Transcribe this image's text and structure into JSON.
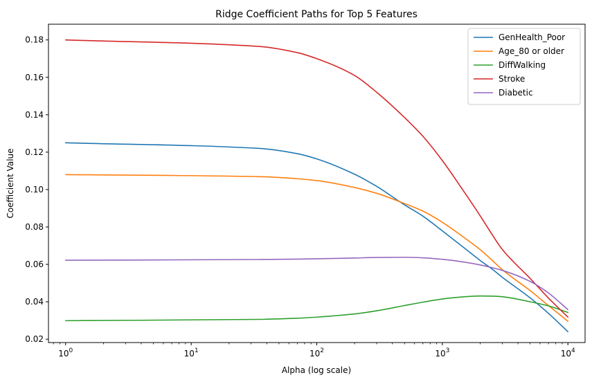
{
  "chart_data": {
    "type": "line",
    "title": "Ridge Coefficient Paths for Top 5 Features",
    "xlabel": "Alpha (log scale)",
    "ylabel": "Coefficient Value",
    "xscale": "log",
    "xlim": [
      0.73,
      13700
    ],
    "ylim": [
      0.0182,
      0.1884
    ],
    "xticks": [
      {
        "base": "10",
        "exp": "0",
        "value": 1
      },
      {
        "base": "10",
        "exp": "1",
        "value": 10
      },
      {
        "base": "10",
        "exp": "2",
        "value": 100
      },
      {
        "base": "10",
        "exp": "3",
        "value": 1000
      },
      {
        "base": "10",
        "exp": "4",
        "value": 10000
      }
    ],
    "yticks": [
      "0.02",
      "0.04",
      "0.06",
      "0.08",
      "0.10",
      "0.12",
      "0.14",
      "0.16",
      "0.18"
    ],
    "ytick_values": [
      0.02,
      0.04,
      0.06,
      0.08,
      0.1,
      0.12,
      0.14,
      0.16,
      0.18
    ],
    "grid": false,
    "legend_position": "top-right",
    "x": [
      1,
      35,
      70,
      100,
      200,
      300,
      500,
      700,
      1000,
      1500,
      2000,
      2500,
      3000,
      5000,
      7000,
      10000
    ],
    "series": [
      {
        "name": "GenHealth_Poor",
        "color": "#1f77b4",
        "values": [
          0.125,
          0.122,
          0.1192,
          0.1164,
          0.1082,
          0.1017,
          0.0918,
          0.0858,
          0.0779,
          0.0687,
          0.0621,
          0.0574,
          0.0531,
          0.0421,
          0.0338,
          0.024
        ]
      },
      {
        "name": "Age_80 or older",
        "color": "#ff7f0e",
        "values": [
          0.108,
          0.1069,
          0.1058,
          0.1048,
          0.1011,
          0.098,
          0.0925,
          0.0885,
          0.0825,
          0.0742,
          0.0679,
          0.0621,
          0.0572,
          0.046,
          0.038,
          0.0296
        ]
      },
      {
        "name": "DiffWalking",
        "color": "#2ca02c",
        "values": [
          0.0299,
          0.0306,
          0.0312,
          0.0318,
          0.0335,
          0.0352,
          0.038,
          0.0398,
          0.0415,
          0.0427,
          0.0431,
          0.043,
          0.0427,
          0.04,
          0.0378,
          0.0343
        ]
      },
      {
        "name": "Stroke",
        "color": "#d62728",
        "values": [
          0.18,
          0.1765,
          0.1732,
          0.17,
          0.161,
          0.152,
          0.1385,
          0.1285,
          0.1155,
          0.0985,
          0.086,
          0.0758,
          0.068,
          0.0525,
          0.042,
          0.0318
        ]
      },
      {
        "name": "Diabetic",
        "color": "#9467bd",
        "values": [
          0.0622,
          0.0626,
          0.0628,
          0.063,
          0.0634,
          0.0637,
          0.0638,
          0.0635,
          0.0627,
          0.0612,
          0.0597,
          0.0582,
          0.0568,
          0.0509,
          0.0447,
          0.0358
        ]
      }
    ]
  }
}
